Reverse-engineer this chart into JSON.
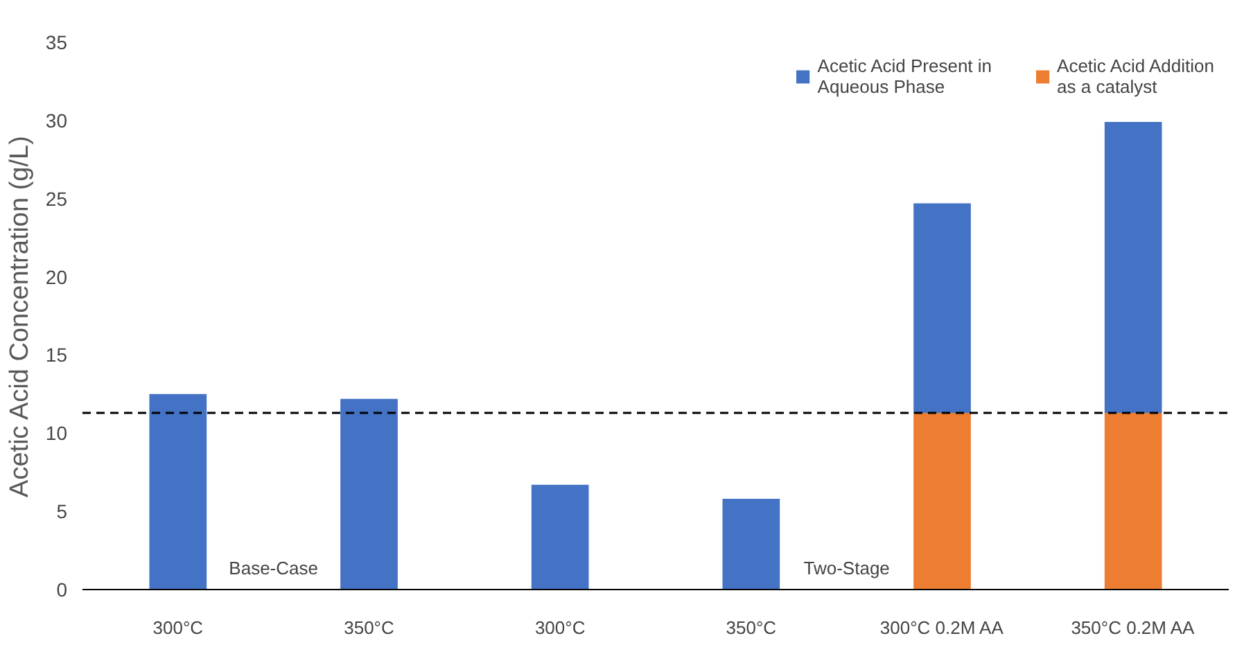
{
  "chart_data": {
    "type": "bar",
    "stacked": true,
    "categories": [
      "300°C",
      "350°C",
      "300°C",
      "350°C",
      "300°C 0.2M AA",
      "350°C 0.2M AA"
    ],
    "series": [
      {
        "name": "Acetic Acid Addition as a catalyst",
        "color": "#ed7d31",
        "values": [
          null,
          null,
          null,
          null,
          11.3,
          11.3
        ]
      },
      {
        "name": "Acetic Acid Present in Aqueous Phase",
        "color": "#4472c4",
        "values": [
          12.5,
          12.2,
          6.7,
          5.8,
          13.4,
          18.6
        ]
      }
    ],
    "ylabel": "Acetic Acid Concentration (g/L)",
    "ylim": [
      0,
      35
    ],
    "yticks": [
      0,
      5,
      10,
      15,
      20,
      25,
      30,
      35
    ],
    "grid": false,
    "legend": "top right",
    "ref_lines": [
      {
        "axis": "y",
        "value": 11.3,
        "color": "#000000",
        "line_style": "dashed"
      }
    ],
    "annotations": [
      "Base-Case",
      "Two-Stage"
    ]
  }
}
